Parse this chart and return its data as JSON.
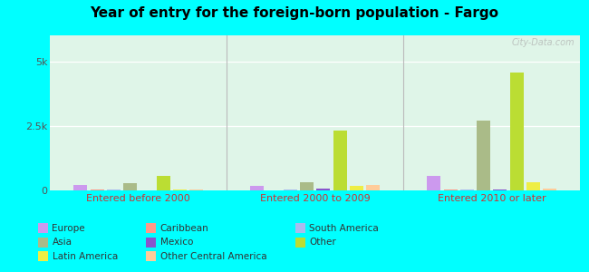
{
  "title": "Year of entry for the foreign-born population - Fargo",
  "background_color": "#00FFFF",
  "plot_bg": "#dff5e8",
  "groups": [
    "Entered before 2000",
    "Entered 2000 to 2009",
    "Entered 2010 or later"
  ],
  "categories": [
    "Europe",
    "Caribbean",
    "South America",
    "Asia",
    "Mexico",
    "Other",
    "Latin America",
    "Other Central America"
  ],
  "colors": [
    "#cc99ee",
    "#ff9988",
    "#aabbee",
    "#aabb88",
    "#8855cc",
    "#bbdd33",
    "#eeee44",
    "#ffcc99"
  ],
  "data": {
    "Entered before 2000": [
      200,
      30,
      20,
      280,
      15,
      550,
      30,
      25
    ],
    "Entered 2000 to 2009": [
      180,
      15,
      30,
      320,
      80,
      2300,
      160,
      200
    ],
    "Entered 2010 or later": [
      550,
      25,
      50,
      2700,
      40,
      4550,
      320,
      70
    ]
  },
  "ylim": [
    0,
    6000
  ],
  "yticks": [
    0,
    2500,
    5000
  ],
  "ytick_labels": [
    "0",
    "2.5k",
    "5k"
  ],
  "xlabel_color": "#cc3333",
  "legend_order": [
    "Europe",
    "Asia",
    "Latin America",
    "Caribbean",
    "Mexico",
    "Other Central America",
    "South America",
    "Other"
  ],
  "watermark": "City-Data.com"
}
